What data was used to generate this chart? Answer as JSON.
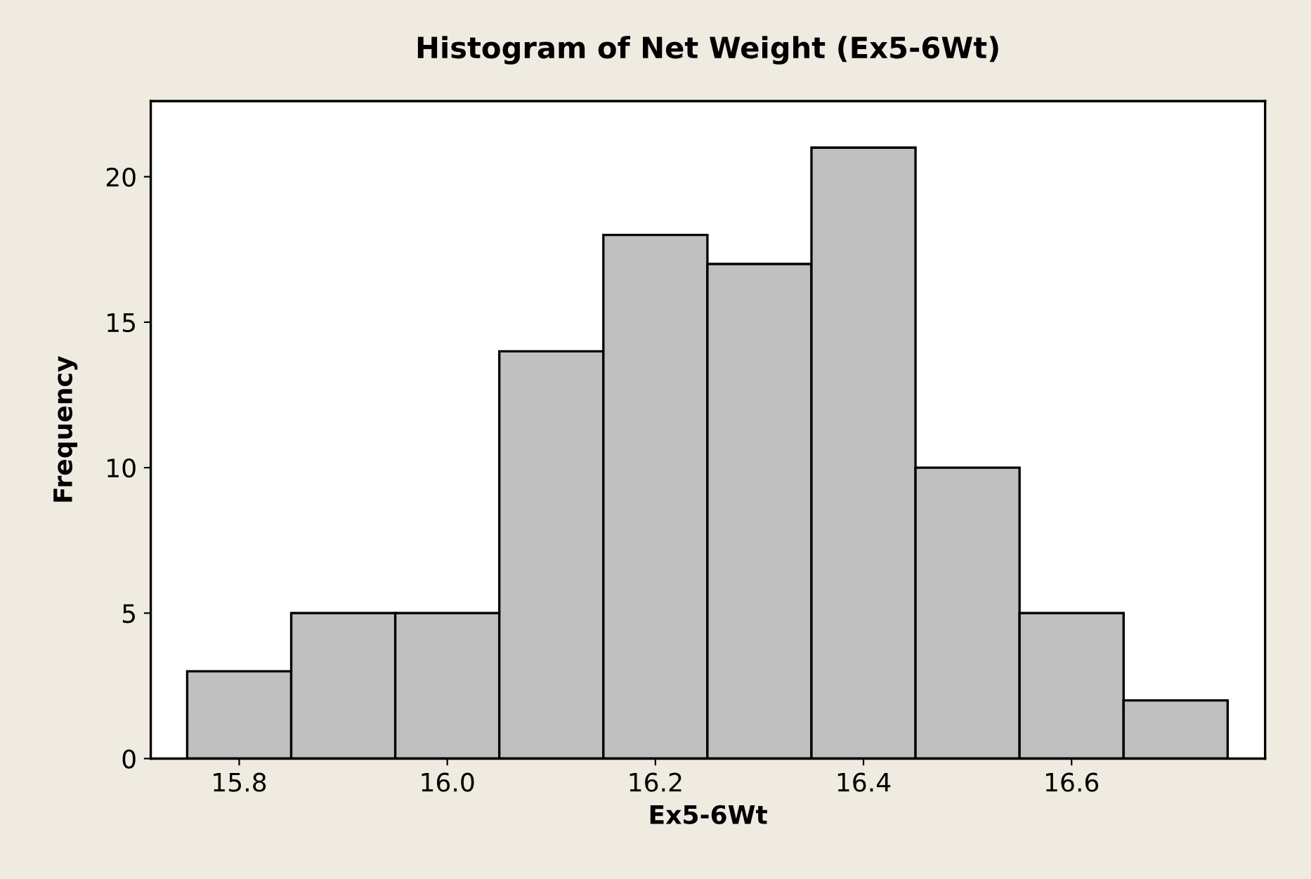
{
  "chart_data": {
    "type": "histogram",
    "title": "Histogram of Net Weight (Ex5-6Wt)",
    "xlabel": "Ex5-6Wt",
    "ylabel": "Frequency",
    "bins": [
      15.75,
      15.85,
      15.95,
      16.05,
      16.15,
      16.25,
      16.35,
      16.45,
      16.55,
      16.65,
      16.75
    ],
    "values": [
      3,
      5,
      5,
      14,
      18,
      17,
      21,
      10,
      5,
      2
    ],
    "color": "#c0c0c0",
    "xlim": [
      15.715,
      16.786
    ],
    "xticks": [
      {
        "value": 15.8,
        "label": "15.8"
      },
      {
        "value": 16.0,
        "label": "16.0"
      },
      {
        "value": 16.2,
        "label": "16.2"
      },
      {
        "value": 16.4,
        "label": "16.4"
      },
      {
        "value": 16.6,
        "label": "16.6"
      }
    ],
    "ylim": [
      0,
      22.6
    ],
    "yticks": [
      0,
      5,
      10,
      15,
      20
    ],
    "grid": false
  }
}
